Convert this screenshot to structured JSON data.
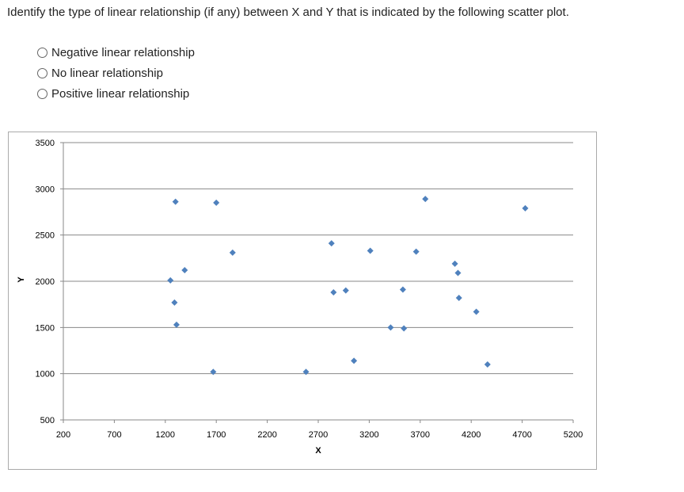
{
  "question": "Identify the type of linear relationship (if any) between X and Y that is indicated by the following scatter plot.",
  "options": [
    "Negative linear relationship",
    "No linear relationship",
    "Positive linear relationship"
  ],
  "chart_data": {
    "type": "scatter",
    "x_label": "X",
    "y_label": "Y",
    "color": "#4f81bd",
    "grid": true,
    "x": [
      1300,
      1700,
      1860,
      1390,
      1250,
      1290,
      1310,
      1670,
      2580,
      2830,
      2850,
      2970,
      3050,
      3210,
      3410,
      3540,
      3530,
      3660,
      3750,
      4040,
      4070,
      4080,
      4250,
      4360,
      4730
    ],
    "values": [
      2860,
      2850,
      2310,
      2120,
      2010,
      1770,
      1530,
      1020,
      1020,
      2410,
      1880,
      1900,
      1140,
      2330,
      1500,
      1490,
      1910,
      2320,
      2890,
      2190,
      2090,
      1820,
      1670,
      1100,
      2790
    ],
    "xlim": [
      200,
      5200
    ],
    "xticks": [
      200,
      700,
      1200,
      1700,
      2200,
      2700,
      3200,
      3700,
      4200,
      4700,
      5200
    ],
    "ylim": [
      500,
      3500
    ],
    "yticks": [
      500,
      1000,
      1500,
      2000,
      2500,
      3000,
      3500
    ]
  }
}
